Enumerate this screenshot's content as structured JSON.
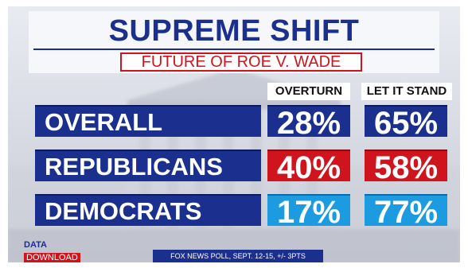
{
  "title": "SUPREME SHIFT",
  "subtitle": "FUTURE OF ROE V. WADE",
  "columns": [
    "OVERTURN",
    "LET IT STAND"
  ],
  "rows": [
    {
      "label": "OVERALL",
      "values": [
        "28%",
        "65%"
      ],
      "color": "#1b2f8e"
    },
    {
      "label": "REPUBLICANS",
      "values": [
        "40%",
        "58%"
      ],
      "color": "#d0141d"
    },
    {
      "label": "DEMOCRATS",
      "values": [
        "17%",
        "77%"
      ],
      "color": "#1d9be0"
    }
  ],
  "footer": {
    "brand_top": "DATA",
    "brand_bottom": "DOWNLOAD",
    "source": "FOX NEWS POLL, SEPT. 12-15, +/- 3PTS"
  }
}
